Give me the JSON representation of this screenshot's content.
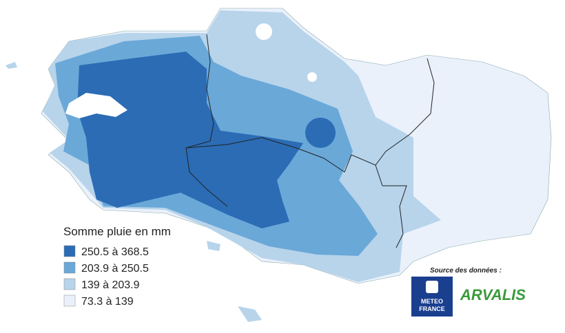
{
  "legend": {
    "title": "Somme pluie en mm",
    "items": [
      {
        "label": "250.5 à 368.5",
        "color": "#2b6cb5"
      },
      {
        "label": "203.9 à 250.5",
        "color": "#6aa8d8"
      },
      {
        "label": "139 à 203.9",
        "color": "#b7d4eb"
      },
      {
        "label": "73.3 à 139",
        "color": "#eaf1fb"
      }
    ]
  },
  "source": {
    "text": "Source des données :",
    "logo_meteo": [
      "METEO",
      "FRANCE"
    ],
    "logo_arvalis": "ARVALIS"
  }
}
